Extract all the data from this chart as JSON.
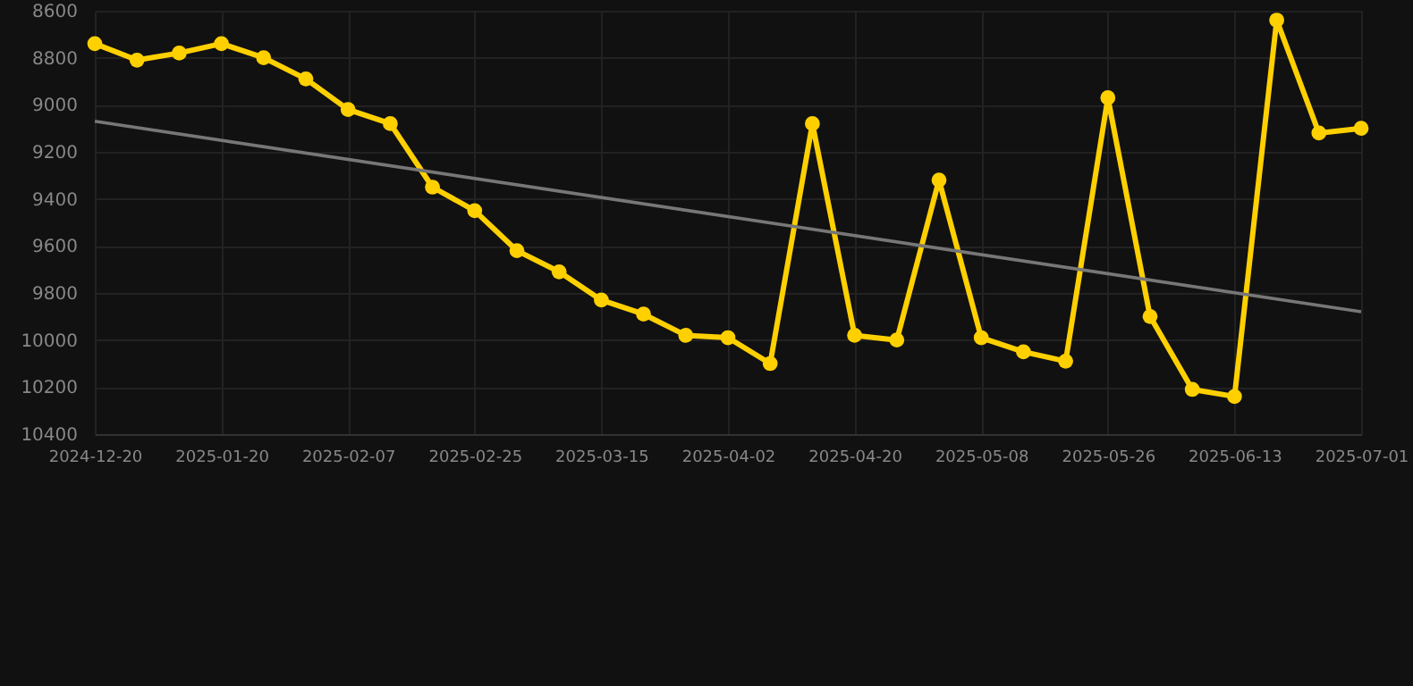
{
  "chart_data": {
    "type": "line",
    "categories": [
      "2024-12-20",
      null,
      null,
      "2025-01-20",
      null,
      null,
      "2025-02-07",
      null,
      null,
      "2025-02-25",
      null,
      null,
      "2025-03-15",
      null,
      null,
      "2025-04-02",
      null,
      null,
      "2025-04-20",
      null,
      null,
      "2025-05-08",
      null,
      null,
      "2025-05-26",
      null,
      null,
      "2025-06-13",
      null,
      null,
      "2025-07-01"
    ],
    "series": [
      {
        "color": "#ffd000",
        "marker": "circle",
        "values": [
          8740,
          8810,
          8780,
          8740,
          8800,
          8890,
          9020,
          9080,
          9350,
          9450,
          9620,
          9710,
          9830,
          9890,
          9980,
          9990,
          10100,
          9080,
          9980,
          10000,
          9320,
          9990,
          10050,
          10090,
          8970,
          9900,
          10210,
          10240,
          8640,
          9120,
          9100
        ]
      },
      {
        "type": "line",
        "color": "#777777",
        "marker": "none",
        "values": [
          9070,
          null,
          null,
          null,
          null,
          null,
          null,
          null,
          null,
          null,
          null,
          null,
          null,
          null,
          null,
          null,
          null,
          null,
          null,
          null,
          null,
          null,
          null,
          null,
          null,
          null,
          null,
          null,
          null,
          null,
          9880
        ]
      }
    ],
    "ylim": [
      10400,
      8600
    ],
    "yticks": [
      8600,
      8800,
      9000,
      9200,
      9400,
      9600,
      9800,
      10000,
      10200,
      10400
    ],
    "grid": true
  }
}
